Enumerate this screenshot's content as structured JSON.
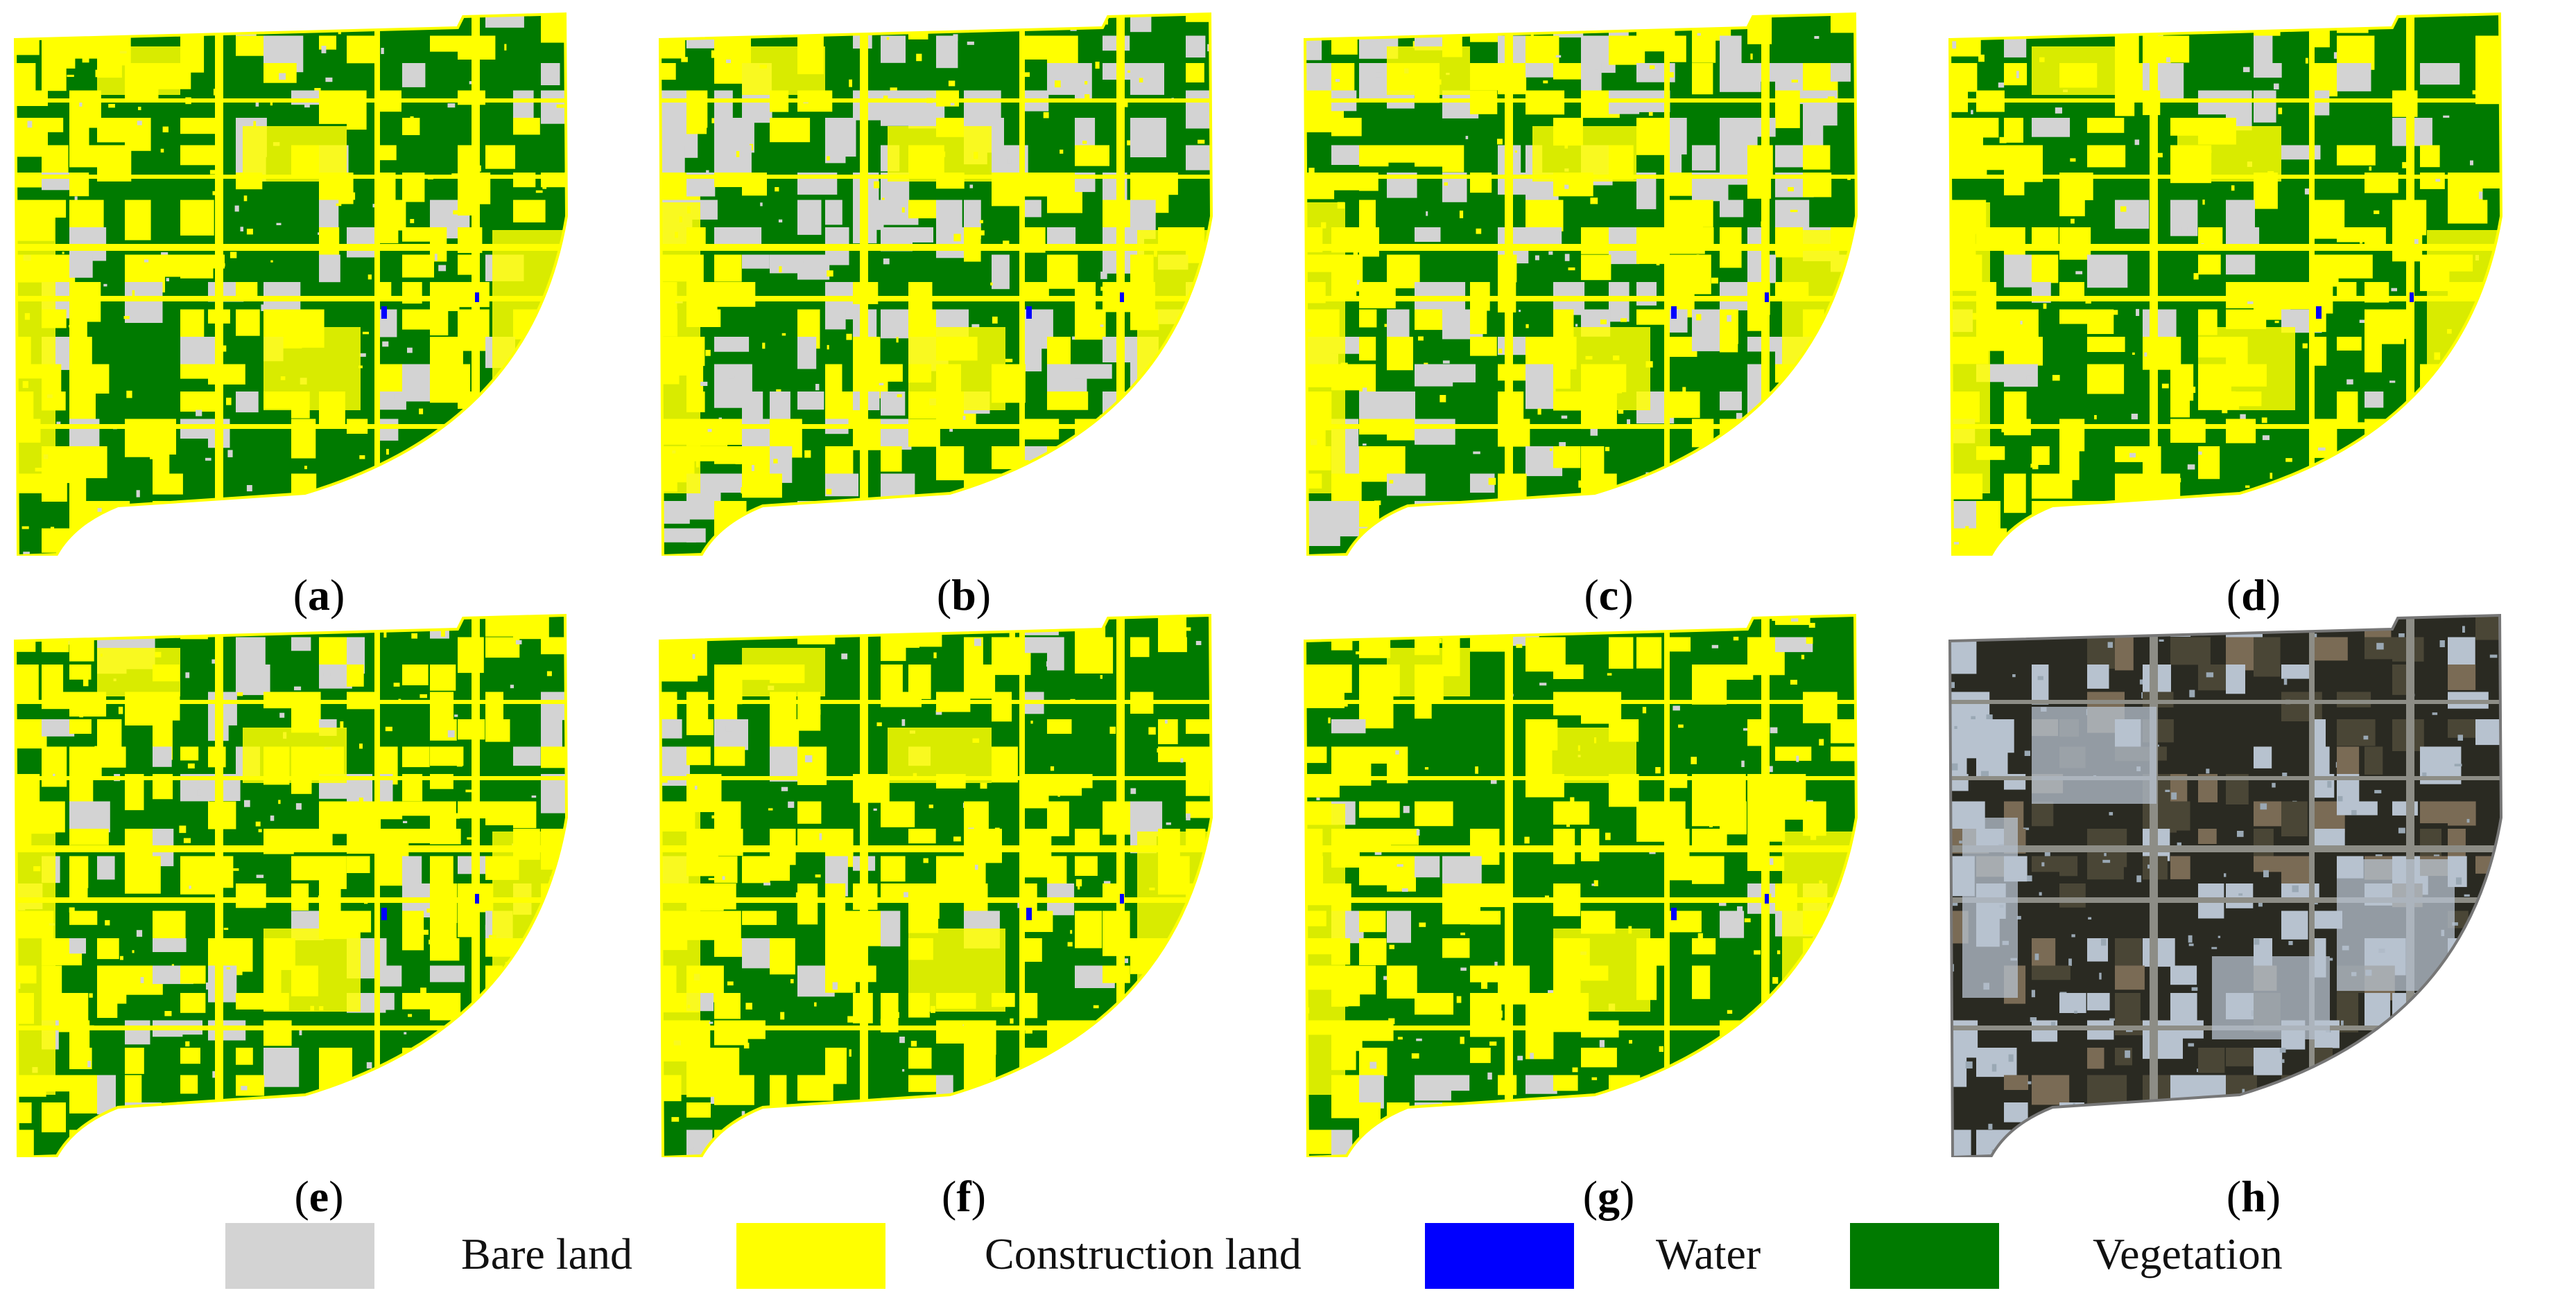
{
  "colors": {
    "bare_land": "#d3d3d3",
    "construction_land": "#ffff00",
    "water": "#0000ff",
    "vegetation": "#007a00",
    "imagery_dark": "#2a2a22",
    "imagery_light": "#b7c2cf"
  },
  "panels": [
    {
      "label": "a",
      "kind": "classification",
      "bare_share": 0.12,
      "construction_share": 0.4
    },
    {
      "label": "b",
      "kind": "classification",
      "bare_share": 0.3,
      "construction_share": 0.38
    },
    {
      "label": "c",
      "kind": "classification",
      "bare_share": 0.26,
      "construction_share": 0.4
    },
    {
      "label": "d",
      "kind": "classification",
      "bare_share": 0.1,
      "construction_share": 0.46
    },
    {
      "label": "e",
      "kind": "classification",
      "bare_share": 0.14,
      "construction_share": 0.44
    },
    {
      "label": "f",
      "kind": "classification",
      "bare_share": 0.1,
      "construction_share": 0.46
    },
    {
      "label": "g",
      "kind": "classification",
      "bare_share": 0.06,
      "construction_share": 0.48
    },
    {
      "label": "h",
      "kind": "imagery"
    }
  ],
  "legend": [
    {
      "key": "bare_land",
      "label": "Bare land"
    },
    {
      "key": "construction_land",
      "label": "Construction land"
    },
    {
      "key": "water",
      "label": "Water"
    },
    {
      "key": "vegetation",
      "label": "Vegetation"
    }
  ]
}
